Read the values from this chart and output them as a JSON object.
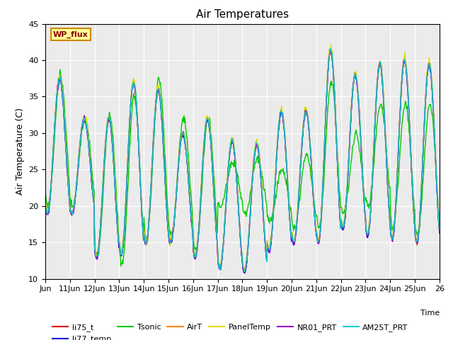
{
  "title": "Air Temperatures",
  "ylabel": "Air Temperature (C)",
  "xlabel": "Time",
  "xlim_start": 0,
  "xlim_end": 16,
  "ylim": [
    10,
    45
  ],
  "yticks": [
    10,
    15,
    20,
    25,
    30,
    35,
    40,
    45
  ],
  "xtick_labels": [
    "Jun",
    "11Jun",
    "12Jun",
    "13Jun",
    "14Jun",
    "15Jun",
    "16Jun",
    "17Jun",
    "18Jun",
    "19Jun",
    "20Jun",
    "21Jun",
    "22Jun",
    "23Jun",
    "24Jun",
    "25Jun",
    "26"
  ],
  "bg_color": "#ebebeb",
  "series_colors": {
    "li75_t": "#dd0000",
    "li77_temp": "#0000dd",
    "Tsonic": "#00cc00",
    "AirT": "#ff8800",
    "PanelTemp": "#dddd00",
    "NR01_PRT": "#9900cc",
    "AM25T_PRT": "#00cccc"
  },
  "legend_label": "WP_flux",
  "legend_bg": "#ffff99",
  "legend_border": "#cc8800"
}
